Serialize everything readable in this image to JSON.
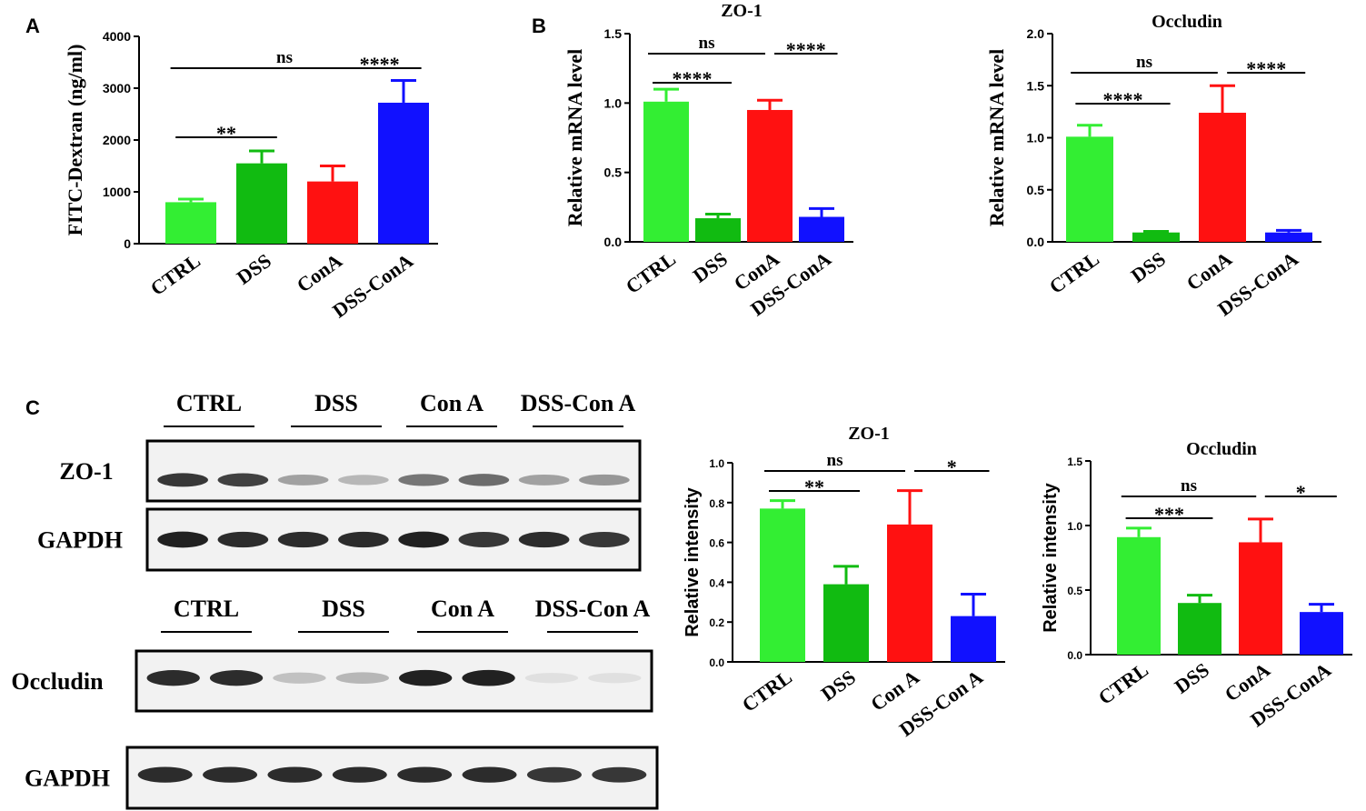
{
  "panels": {
    "A": "A",
    "B": "B",
    "C": "C"
  },
  "colors": {
    "ctrl": "#33ee33",
    "dss": "#11bb11",
    "cona": "#ff1111",
    "dsscona": "#1111ff"
  },
  "blots": {
    "zo1": {
      "groups": [
        "CTRL",
        "DSS",
        "Con A",
        "DSS-Con A"
      ],
      "rows": [
        "ZO-1",
        "GAPDH"
      ],
      "band_intensity": {
        "ZO-1": [
          0.85,
          0.8,
          0.35,
          0.25,
          0.55,
          0.6,
          0.35,
          0.4
        ],
        "GAPDH": [
          0.95,
          0.9,
          0.9,
          0.9,
          0.95,
          0.85,
          0.9,
          0.85
        ]
      }
    },
    "occludin": {
      "groups": [
        "CTRL",
        "DSS",
        "Con A",
        "DSS-Con A"
      ],
      "rows": [
        "Occludin",
        "GAPDH"
      ],
      "band_intensity": {
        "Occludin": [
          0.9,
          0.9,
          0.2,
          0.25,
          0.95,
          0.95,
          0.06,
          0.06
        ],
        "GAPDH": [
          0.9,
          0.9,
          0.9,
          0.9,
          0.9,
          0.9,
          0.85,
          0.85
        ]
      }
    }
  },
  "chart_data": [
    {
      "id": "A",
      "type": "bar",
      "title": "",
      "xlabel": "",
      "ylabel": "FITC-Dextran (ng/ml)",
      "categories": [
        "CTRL",
        "DSS",
        "ConA",
        "DSS-ConA"
      ],
      "values": [
        800,
        1550,
        1200,
        2720
      ],
      "errors": [
        60,
        240,
        300,
        430
      ],
      "ylim": [
        0,
        4000
      ],
      "yticks": [
        "0",
        "1000",
        "2000",
        "3000",
        "4000"
      ],
      "significance": [
        {
          "from": 0,
          "to": 3,
          "label": "ns"
        },
        {
          "from": 2,
          "to": 3,
          "label": "****"
        },
        {
          "from": 0,
          "to": 1,
          "label": "**"
        }
      ]
    },
    {
      "id": "B1",
      "type": "bar",
      "title": "ZO-1",
      "xlabel": "",
      "ylabel": "Relative mRNA level",
      "categories": [
        "CTRL",
        "DSS",
        "ConA",
        "DSS-ConA"
      ],
      "values": [
        1.01,
        0.17,
        0.95,
        0.18
      ],
      "errors": [
        0.09,
        0.03,
        0.07,
        0.06
      ],
      "ylim": [
        0,
        1.5
      ],
      "yticks": [
        "0.0",
        "0.5",
        "1.0",
        "1.5"
      ],
      "significance": [
        {
          "from": 0,
          "to": 2,
          "label": "ns"
        },
        {
          "from": 2,
          "to": 3,
          "label": "****"
        },
        {
          "from": 0,
          "to": 1,
          "label": "****"
        }
      ]
    },
    {
      "id": "B2",
      "type": "bar",
      "title": "Occludin",
      "xlabel": "",
      "ylabel": "Relative mRNA level",
      "categories": [
        "CTRL",
        "DSS",
        "ConA",
        "DSS-ConA"
      ],
      "values": [
        1.01,
        0.09,
        1.24,
        0.09
      ],
      "errors": [
        0.11,
        0.01,
        0.26,
        0.02
      ],
      "ylim": [
        0,
        2.0
      ],
      "yticks": [
        "0.0",
        "0.5",
        "1.0",
        "1.5",
        "2.0"
      ],
      "significance": [
        {
          "from": 0,
          "to": 2,
          "label": "ns"
        },
        {
          "from": 2,
          "to": 3,
          "label": "****"
        },
        {
          "from": 0,
          "to": 1,
          "label": "****"
        }
      ]
    },
    {
      "id": "C1",
      "type": "bar",
      "title": "ZO-1",
      "xlabel": "",
      "ylabel": "Relative intensity",
      "categories": [
        "CTRL",
        "DSS",
        "Con A",
        "DSS-Con A"
      ],
      "values": [
        0.77,
        0.39,
        0.69,
        0.23
      ],
      "errors": [
        0.04,
        0.09,
        0.17,
        0.11
      ],
      "ylim": [
        0,
        1.0
      ],
      "yticks": [
        "0.0",
        "0.2",
        "0.4",
        "0.6",
        "0.8",
        "1.0"
      ],
      "significance": [
        {
          "from": 0,
          "to": 2,
          "label": "ns"
        },
        {
          "from": 2,
          "to": 3,
          "label": "*"
        },
        {
          "from": 0,
          "to": 1,
          "label": "**"
        }
      ]
    },
    {
      "id": "C2",
      "type": "bar",
      "title": "Occludin",
      "xlabel": "",
      "ylabel": "Relative intensity",
      "categories": [
        "CTRL",
        "DSS",
        "ConA",
        "DSS-ConA"
      ],
      "values": [
        0.91,
        0.4,
        0.87,
        0.33
      ],
      "errors": [
        0.07,
        0.06,
        0.18,
        0.06
      ],
      "ylim": [
        0,
        1.5
      ],
      "yticks": [
        "0.0",
        "0.5",
        "1.0",
        "1.5"
      ],
      "significance": [
        {
          "from": 0,
          "to": 2,
          "label": "ns"
        },
        {
          "from": 2,
          "to": 3,
          "label": "*"
        },
        {
          "from": 0,
          "to": 1,
          "label": "***"
        }
      ]
    }
  ]
}
